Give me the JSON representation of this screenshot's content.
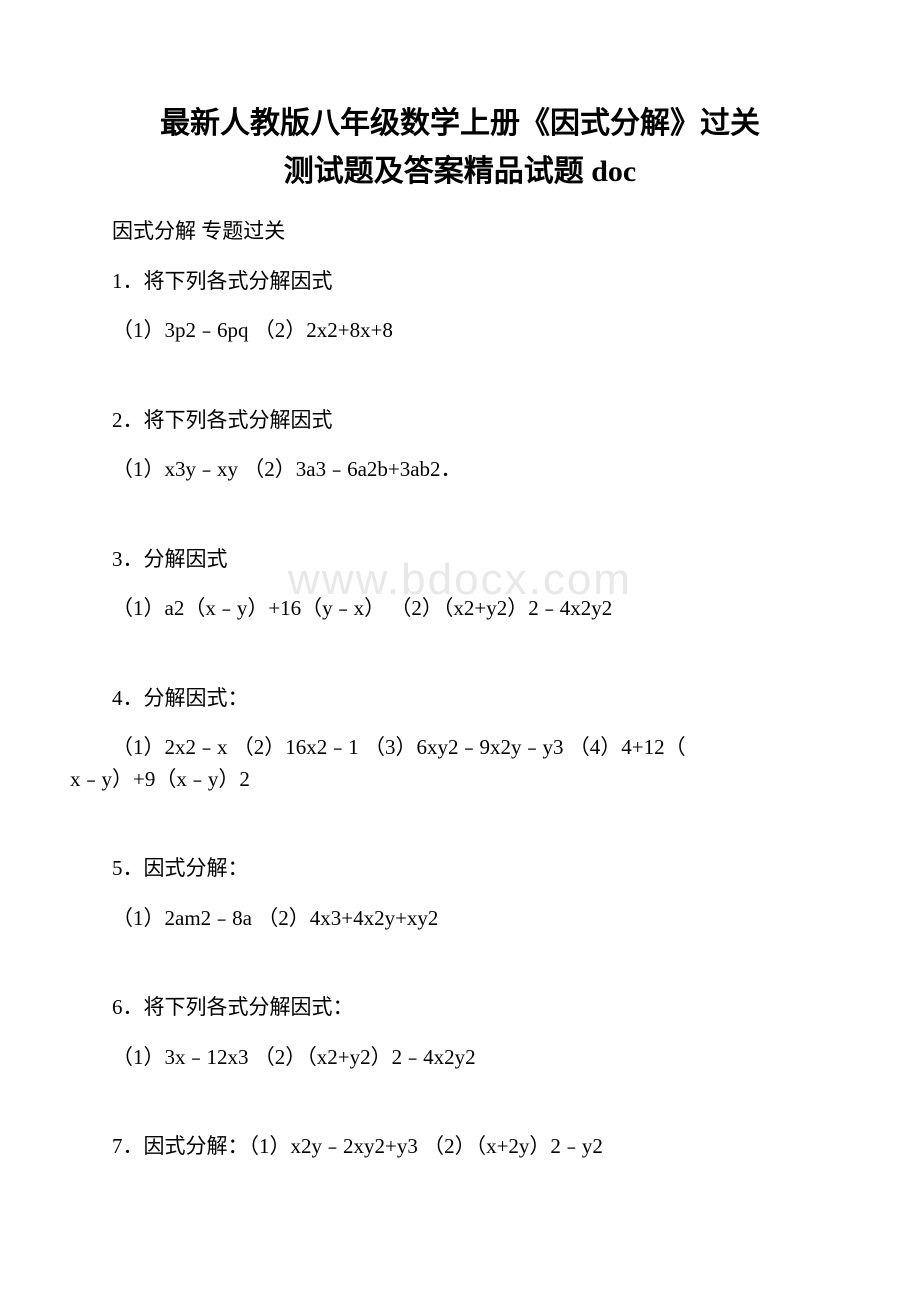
{
  "document": {
    "title_line1": "最新人教版八年级数学上册《因式分解》过关",
    "title_line2": "测试题及答案精品试题 doc",
    "subtitle": "因式分解 专题过关",
    "watermark": "www.bdocx.com",
    "colors": {
      "background": "#ffffff",
      "text": "#000000",
      "watermark": "#e8e8e8"
    },
    "typography": {
      "title_fontsize": 30,
      "body_fontsize": 21,
      "watermark_fontsize": 44,
      "font_family": "SimSun"
    },
    "problems": [
      {
        "heading": "1．将下列各式分解因式",
        "items": "（1）3p2﹣6pq （2）2x2+8x+8"
      },
      {
        "heading": "2．将下列各式分解因式",
        "items": "（1）x3y﹣xy （2）3a3﹣6a2b+3ab2．"
      },
      {
        "heading": "3．分解因式",
        "items": "（1）a2（x﹣y）+16（y﹣x） （2）（x2+y2）2﹣4x2y2"
      },
      {
        "heading": "4．分解因式：",
        "items_wrap_line1": "（1）2x2﹣x （2）16x2﹣1 （3）6xy2﹣9x2y﹣y3 （4）4+12（",
        "items_wrap_line2": "x﹣y）+9（x﹣y）2"
      },
      {
        "heading": "5．因式分解：",
        "items": "（1）2am2﹣8a （2）4x3+4x2y+xy2"
      },
      {
        "heading": "6．将下列各式分解因式：",
        "items": "（1）3x﹣12x3 （2）（x2+y2）2﹣4x2y2"
      },
      {
        "inline": "7．因式分解：（1）x2y﹣2xy2+y3 （2）（x+2y）2﹣y2"
      }
    ]
  }
}
